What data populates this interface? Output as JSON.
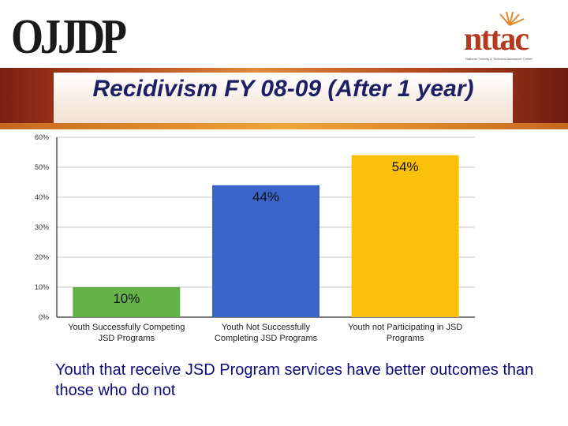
{
  "header": {
    "left_logo_text": "OJJDP",
    "right_logo_text": "nttac",
    "right_logo_subtitle": "National Training & Technical Assistance Center"
  },
  "slide": {
    "title": "Recidivism FY 08-09 (After 1 year)",
    "caption": "Youth that receive JSD Program services have better outcomes than those who do not"
  },
  "colors": {
    "bar1": "#63b347",
    "bar2": "#3b64c9",
    "bar3": "#f9c109",
    "grid": "#c8c8c8",
    "axis": "#000000"
  },
  "chart_data": {
    "type": "bar",
    "title": "Recidivism FY 08-09 (After 1 year)",
    "xlabel": "",
    "ylabel": "",
    "ylim": [
      0,
      60
    ],
    "yticks": [
      "0%",
      "10%",
      "20%",
      "30%",
      "40%",
      "50%",
      "60%"
    ],
    "grid": true,
    "categories": [
      [
        "Youth Successfully Competing",
        "JSD Programs"
      ],
      [
        "Youth Not Successfully",
        "Completing JSD Programs"
      ],
      [
        "Youth not Participating in JSD",
        "Programs"
      ]
    ],
    "values": [
      10,
      44,
      54
    ],
    "data_labels": [
      "10%",
      "44%",
      "54%"
    ]
  }
}
